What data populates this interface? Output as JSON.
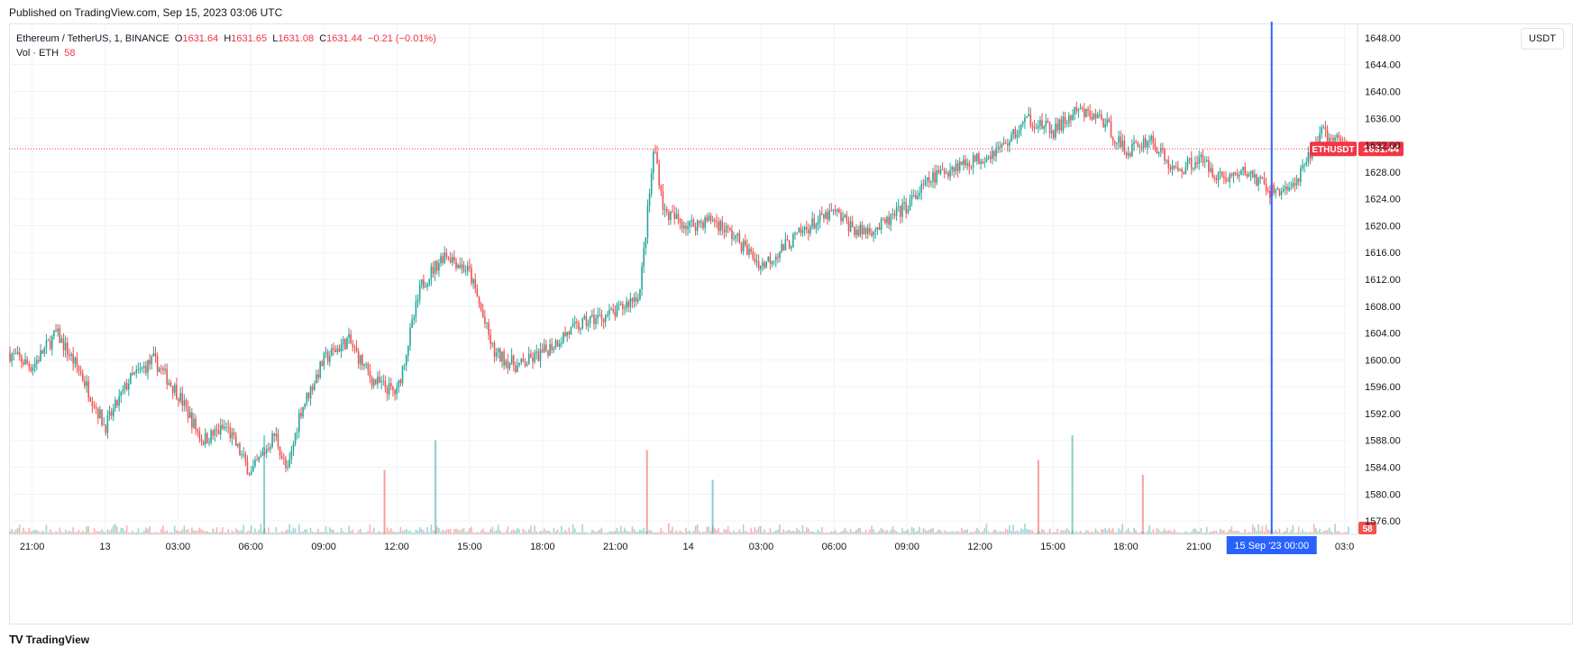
{
  "header": {
    "published": "Published on TradingView.com, Sep 15, 2023 03:06 UTC"
  },
  "legend": {
    "symbol": "Ethereum / TetherUS, 1, BINANCE",
    "open_label": "O",
    "open": "1631.64",
    "high_label": "H",
    "high": "1631.65",
    "low_label": "L",
    "low": "1631.08",
    "close_label": "C",
    "close": "1631.44",
    "change": "−0.21 (−0.01%)",
    "volume_label": "Vol · ETH",
    "volume": "58"
  },
  "currency_button": "USDT",
  "footer": {
    "logo_text": "TradingView"
  },
  "colors": {
    "up": "#26a69a",
    "down": "#ef5350",
    "crosshair": "#2962ff",
    "grid": "#f0f3fa",
    "price_line": "#f23645"
  },
  "chart_data": {
    "type": "candlestick",
    "symbol": "ETHUSDT",
    "last_price_label": "1631.44",
    "volume_label": "58",
    "crosshair_label": "15 Sep '23   00:00",
    "y_ticks": [
      "1576.00",
      "1580.00",
      "1584.00",
      "1588.00",
      "1592.00",
      "1596.00",
      "1600.00",
      "1604.00",
      "1608.00",
      "1612.00",
      "1616.00",
      "1620.00",
      "1624.00",
      "1628.00",
      "1632.00",
      "1636.00",
      "1640.00",
      "1644.00",
      "1648.00"
    ],
    "ylim": [
      1574,
      1650
    ],
    "x_ticks": [
      "21:00",
      "13",
      "03:00",
      "06:00",
      "09:00",
      "12:00",
      "15:00",
      "18:00",
      "21:00",
      "14",
      "03:00",
      "06:00",
      "09:00",
      "12:00",
      "15:00",
      "18:00",
      "21:00",
      "03:0"
    ],
    "x_tick_hours": [
      0,
      3,
      6,
      9,
      12,
      15,
      18,
      21,
      24,
      27,
      30,
      33,
      36,
      39,
      42,
      45,
      48,
      54
    ],
    "x_range_hours": [
      -0.95,
      54.2
    ],
    "crosshair_hour": 51,
    "price_path": [
      [
        -0.95,
        1601
      ],
      [
        0,
        1599
      ],
      [
        1,
        1604
      ],
      [
        2,
        1598
      ],
      [
        3,
        1590
      ],
      [
        4,
        1597
      ],
      [
        5,
        1600
      ],
      [
        6,
        1595
      ],
      [
        7,
        1588
      ],
      [
        8,
        1590
      ],
      [
        9,
        1583
      ],
      [
        10,
        1589
      ],
      [
        10.5,
        1583
      ],
      [
        11,
        1592
      ],
      [
        12,
        1600
      ],
      [
        13,
        1603
      ],
      [
        14,
        1597
      ],
      [
        15,
        1595
      ],
      [
        16,
        1611
      ],
      [
        17,
        1616
      ],
      [
        18,
        1613
      ],
      [
        19,
        1601
      ],
      [
        20,
        1599
      ],
      [
        21,
        1601
      ],
      [
        22,
        1604
      ],
      [
        23,
        1606
      ],
      [
        24,
        1607
      ],
      [
        25,
        1610
      ],
      [
        25.6,
        1632
      ],
      [
        26,
        1622
      ],
      [
        27,
        1620
      ],
      [
        28,
        1621
      ],
      [
        29,
        1618
      ],
      [
        30,
        1614
      ],
      [
        31,
        1617
      ],
      [
        32,
        1620
      ],
      [
        33,
        1622
      ],
      [
        34,
        1619
      ],
      [
        35,
        1620
      ],
      [
        36,
        1623
      ],
      [
        37,
        1627
      ],
      [
        38,
        1629
      ],
      [
        39,
        1630
      ],
      [
        40,
        1632
      ],
      [
        41,
        1636
      ],
      [
        42,
        1634
      ],
      [
        43,
        1637
      ],
      [
        44,
        1636
      ],
      [
        45,
        1631
      ],
      [
        46,
        1633
      ],
      [
        47,
        1628
      ],
      [
        48,
        1630
      ],
      [
        49,
        1627
      ],
      [
        50,
        1628
      ],
      [
        51,
        1625
      ],
      [
        52,
        1626
      ],
      [
        53,
        1634
      ],
      [
        54.2,
        1631.44
      ]
    ],
    "volume_spikes": [
      {
        "hour": 9.55,
        "volume": 1.0
      },
      {
        "hour": 25.3,
        "volume": 0.85
      },
      {
        "hour": 28.0,
        "volume": 0.55
      },
      {
        "hour": 41.4,
        "volume": 0.75
      },
      {
        "hour": 42.8,
        "volume": 1.0
      },
      {
        "hour": 45.7,
        "volume": 0.6
      },
      {
        "hour": 16.6,
        "volume": 0.95
      },
      {
        "hour": 14.5,
        "volume": 0.65
      }
    ]
  }
}
